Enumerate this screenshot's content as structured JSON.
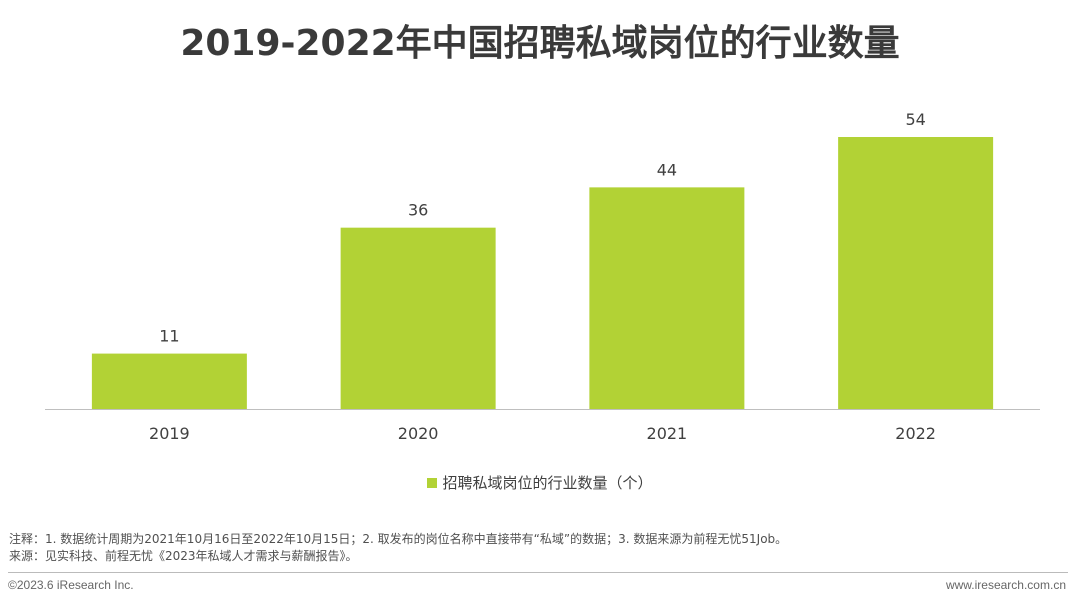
{
  "chart_data": {
    "type": "bar",
    "title": "2019-2022年中国招聘私域岗位的行业数量",
    "categories": [
      "2019",
      "2020",
      "2021",
      "2022"
    ],
    "series": [
      {
        "name": "招聘私域岗位的行业数量（个）",
        "values": [
          11,
          36,
          44,
          54
        ],
        "color": "#b2d235"
      }
    ],
    "data_labels": [
      "11",
      "36",
      "44",
      "54"
    ],
    "ylim": [
      0,
      54
    ],
    "grid": false,
    "legend_position": "bottom"
  },
  "notes": {
    "note": "注释：1. 数据统计周期为2021年10月16日至2022年10月15日；2. 取发布的岗位名称中直接带有“私域”的数据；3. 数据来源为前程无忧51Job。",
    "source": "来源：见实科技、前程无忧《2023年私域人才需求与薪酬报告》。"
  },
  "footer": {
    "copyright": "©2023.6 iResearch Inc.",
    "website": "www.iresearch.com.cn"
  }
}
